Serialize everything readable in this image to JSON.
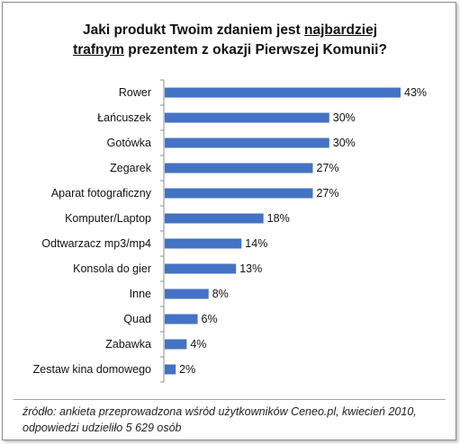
{
  "title": {
    "line1_prefix": "Jaki produkt Twoim zdaniem jest ",
    "line1_underlined": "najbardziej",
    "line2_underlined": "trafnym",
    "line2_suffix": " prezentem z okazji Pierwszej Komunii?"
  },
  "source_note": "źródło:  ankieta przeprowadzona wśród użytkowników Ceneo.pl, kwiecień 2010, odpowiedzi udzieliło 5 629 osób",
  "chart_data": {
    "type": "bar",
    "orientation": "horizontal",
    "title": "Jaki produkt Twoim zdaniem jest najbardziej trafnym prezentem z okazji Pierwszej Komunii?",
    "categories": [
      "Rower",
      "Łańcuszek",
      "Gotówka",
      "Zegarek",
      "Aparat fotograficzny",
      "Komputer/Laptop",
      "Odtwarzacz mp3/mp4",
      "Konsola do gier",
      "Inne",
      "Quad",
      "Zabawka",
      "Zestaw kina domowego"
    ],
    "values": [
      43,
      30,
      30,
      27,
      27,
      18,
      14,
      13,
      8,
      6,
      4,
      2
    ],
    "value_labels": [
      "43%",
      "30%",
      "30%",
      "27%",
      "27%",
      "18%",
      "14%",
      "13%",
      "8%",
      "6%",
      "4%",
      "2%"
    ],
    "xlim": [
      0,
      43
    ],
    "bar_color": "#4472c4",
    "grid": false,
    "legend": "none"
  }
}
